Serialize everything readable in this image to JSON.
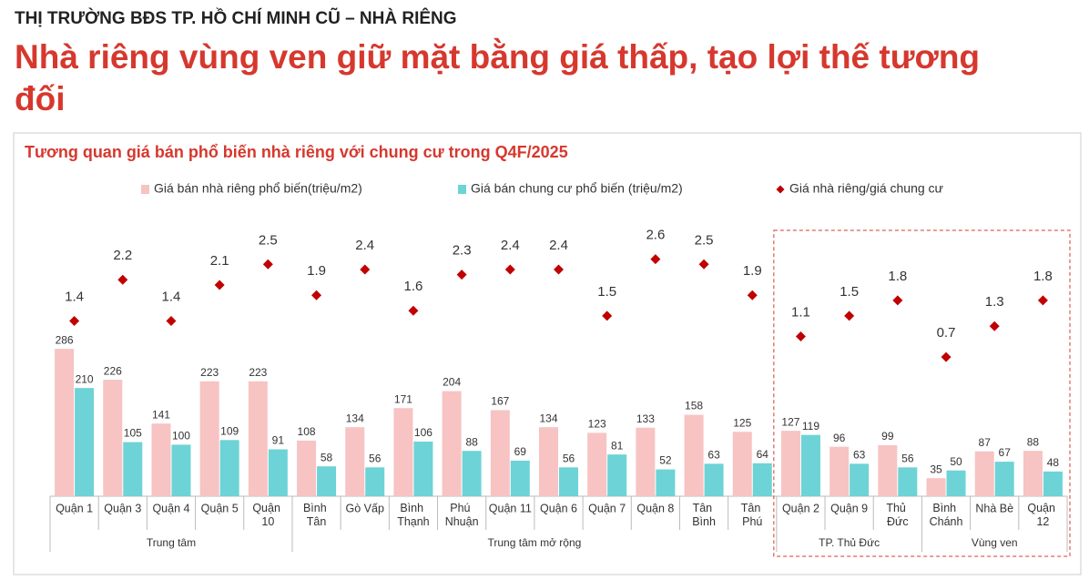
{
  "header": {
    "kicker": "THỊ TRƯỜNG BĐS TP. HỒ CHÍ MINH CŨ –  NHÀ RIÊNG",
    "title": "Nhà riêng vùng ven giữ mặt bằng giá thấp, tạo lợi thế tương đối"
  },
  "chart_data": {
    "type": "bar",
    "title": "Tương quan giá bán phổ biến nhà riêng với chung cư trong Q4F/2025",
    "categories": [
      "Quận 1",
      "Quận 3",
      "Quận 4",
      "Quận 5",
      "Quận 10",
      "Bình Tân",
      "Gò Vấp",
      "Bình Thạnh",
      "Phú Nhuận",
      "Quận 11",
      "Quận 6",
      "Quận 7",
      "Quận 8",
      "Tân Bình",
      "Tân Phú",
      "Quận 2",
      "Quận 9",
      "Thủ Đức",
      "Bình Chánh",
      "Nhà Bè",
      "Quận 12"
    ],
    "groups": [
      {
        "label": "Trung tâm",
        "count": 5
      },
      {
        "label": "Trung tâm mở rộng",
        "count": 10
      },
      {
        "label": "TP. Thủ Đức",
        "count": 3,
        "highlighted": true
      },
      {
        "label": "Vùng ven",
        "count": 3,
        "highlighted": true
      }
    ],
    "series": [
      {
        "name": "Giá bán nhà riêng phổ biến(triệu/m2)",
        "color": "#f7c3c3",
        "values": [
          286,
          226,
          141,
          223,
          223,
          108,
          134,
          171,
          204,
          167,
          134,
          123,
          133,
          158,
          125,
          127,
          96,
          99,
          35,
          87,
          88
        ]
      },
      {
        "name": "Giá bán chung cư phổ biến (triệu/m2)",
        "color": "#6dd3d6",
        "values": [
          210,
          105,
          100,
          109,
          91,
          58,
          56,
          106,
          88,
          69,
          56,
          81,
          52,
          63,
          64,
          119,
          63,
          56,
          50,
          67,
          48
        ]
      },
      {
        "name": "Giá nhà riêng/giá chung cư",
        "color": "#c00000",
        "axis": "y2",
        "marker": "diamond",
        "values": [
          1.4,
          2.2,
          1.4,
          2.1,
          2.5,
          1.9,
          2.4,
          1.6,
          2.3,
          2.4,
          2.4,
          1.5,
          2.6,
          2.5,
          1.9,
          1.1,
          1.5,
          1.8,
          0.7,
          1.3,
          1.8
        ]
      }
    ],
    "ylim": [
      0,
      500
    ],
    "y2lim": [
      -2,
      3
    ]
  }
}
